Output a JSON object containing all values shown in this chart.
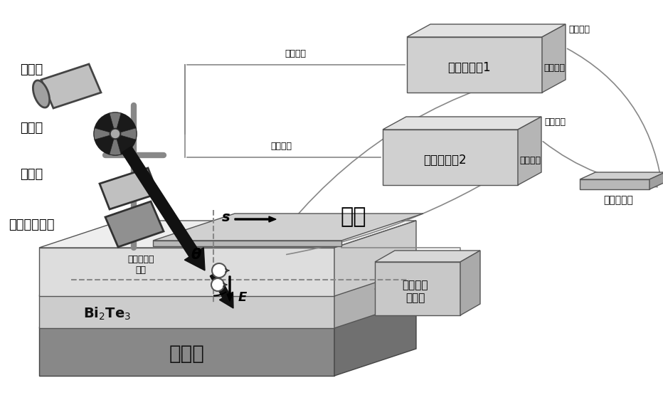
{
  "bg_color": "#ffffff",
  "fig_width": 9.32,
  "fig_height": 5.69,
  "dpi": 100,
  "labels": {
    "laser": "激光器",
    "chopper": "斩波器",
    "polarizer": "起偏器",
    "pem": "光弹性调制器",
    "electrode": "电极",
    "substrate": "硅衬底",
    "spin_electron": "自旋极化的\n电子",
    "lock_in_1": "锁相放大器1",
    "lock_in_2": "锁相放大器2",
    "signal_in_1": "信号输入",
    "signal_out_1": "信号输出",
    "signal_in_2": "信号输入",
    "signal_out_2": "信号输出",
    "ref_freq_1": "参考频率",
    "ref_freq_2": "参考频率",
    "data_acq": "数据采集卡",
    "current_amp": "电流前置\n放大器",
    "theta": "θ",
    "s_label": "s",
    "e_label": "E"
  }
}
